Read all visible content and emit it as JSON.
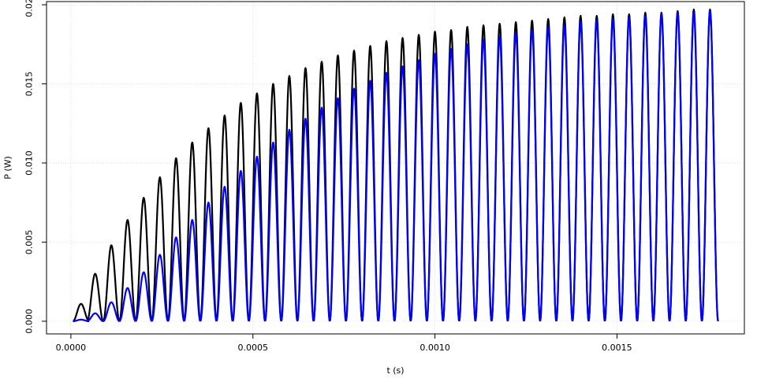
{
  "chart_data": {
    "type": "line",
    "title": "",
    "xlabel": "t (s)",
    "ylabel": "P (W)",
    "xlim": [
      -6.7e-05,
      0.00185
    ],
    "ylim": [
      -0.0008,
      0.0202
    ],
    "x_ticks": [
      0,
      0.0005,
      0.001,
      0.0015
    ],
    "x_tick_labels": [
      "0.0000",
      "0.0005",
      "0.0010",
      "0.0015"
    ],
    "y_ticks": [
      0,
      0.005,
      0.01,
      0.015,
      0.02
    ],
    "y_tick_labels": [
      "0.000",
      "0.005",
      "0.010",
      "0.015",
      "0.020"
    ],
    "grid": true,
    "legend": "none",
    "signal": {
      "period_s": 8.89e-05,
      "duration_s": 0.00178,
      "time_constant_s": 0.00052,
      "peak_max_W": 0.0198
    },
    "series": [
      {
        "color": "#000000",
        "peak_times_s": [
          2.78e-05,
          6.67e-05,
          0.0001111,
          0.0001556,
          0.0002,
          0.0002444,
          0.0002889,
          0.0003333,
          0.0003778,
          0.0004222,
          0.0004667,
          0.0005111,
          0.0005556,
          0.0006,
          0.0006444,
          0.0006889,
          0.0007333,
          0.0007778,
          0.0008222,
          0.0008667,
          0.0009111,
          0.0009556,
          0.001,
          0.0010444,
          0.0010889,
          0.0011333,
          0.0011778,
          0.0012222,
          0.0012667,
          0.0013111,
          0.0013556,
          0.0014,
          0.0014444,
          0.0014889,
          0.0015333,
          0.0015778,
          0.0016222,
          0.0016667,
          0.0017111,
          0.0017556
        ],
        "peak_values_W": [
          0.0011,
          0.003,
          0.0048,
          0.0064,
          0.0078,
          0.0091,
          0.0103,
          0.0113,
          0.0122,
          0.013,
          0.0138,
          0.0144,
          0.015,
          0.0155,
          0.016,
          0.0164,
          0.0168,
          0.0171,
          0.0174,
          0.0177,
          0.0179,
          0.0181,
          0.0183,
          0.0184,
          0.0186,
          0.0187,
          0.0188,
          0.0189,
          0.019,
          0.0191,
          0.0192,
          0.0193,
          0.0193,
          0.0194,
          0.0194,
          0.0195,
          0.0195,
          0.0196,
          0.0197,
          0.0197
        ]
      },
      {
        "color": "#0000ff",
        "peak_times_s": [
          2.78e-05,
          6.67e-05,
          0.0001111,
          0.0001556,
          0.0002,
          0.0002444,
          0.0002889,
          0.0003333,
          0.0003778,
          0.0004222,
          0.0004667,
          0.0005111,
          0.0005556,
          0.0006,
          0.0006444,
          0.0006889,
          0.0007333,
          0.0007778,
          0.0008222,
          0.0008667,
          0.0009111,
          0.0009556,
          0.001,
          0.0010444,
          0.0010889,
          0.0011333,
          0.0011778,
          0.0012222,
          0.0012667,
          0.0013111,
          0.0013556,
          0.0014,
          0.0014444,
          0.0014889,
          0.0015333,
          0.0015778,
          0.0016222,
          0.0016667,
          0.0017111,
          0.0017556
        ],
        "peak_values_W": [
          0.0001,
          0.0005,
          0.0012,
          0.0021,
          0.0031,
          0.0042,
          0.0053,
          0.0064,
          0.0075,
          0.0085,
          0.0095,
          0.0104,
          0.0113,
          0.0121,
          0.0128,
          0.0135,
          0.0141,
          0.0147,
          0.0152,
          0.0157,
          0.0161,
          0.0165,
          0.0169,
          0.0172,
          0.0175,
          0.0178,
          0.018,
          0.0182,
          0.0184,
          0.0186,
          0.0187,
          0.0189,
          0.019,
          0.0191,
          0.0192,
          0.0193,
          0.0194,
          0.0195,
          0.0195,
          0.0196
        ]
      }
    ]
  }
}
